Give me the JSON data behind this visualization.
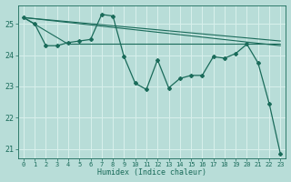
{
  "title": "",
  "xlabel": "Humidex (Indice chaleur)",
  "xlim": [
    -0.5,
    23.5
  ],
  "ylim": [
    20.7,
    25.6
  ],
  "yticks": [
    21,
    22,
    23,
    24,
    25
  ],
  "xticks": [
    0,
    1,
    2,
    3,
    4,
    5,
    6,
    7,
    8,
    9,
    10,
    11,
    12,
    13,
    14,
    15,
    16,
    17,
    18,
    19,
    20,
    21,
    22,
    23
  ],
  "background_color": "#b8ddd8",
  "grid_color": "#d8f0ec",
  "line_color": "#1a6b5a",
  "main_line": {
    "x": [
      0,
      1,
      2,
      3,
      4,
      5,
      6,
      7,
      8,
      9,
      10,
      11,
      12,
      13,
      14,
      15,
      16,
      17,
      18,
      19,
      20,
      21,
      22,
      23
    ],
    "y": [
      25.2,
      25.0,
      24.3,
      24.3,
      24.4,
      24.45,
      24.5,
      25.3,
      25.25,
      23.95,
      23.1,
      22.9,
      23.85,
      22.95,
      23.25,
      23.35,
      23.35,
      23.95,
      23.9,
      24.05,
      24.35,
      23.75,
      22.45,
      20.85
    ]
  },
  "trend_lines": [
    {
      "x": [
        0,
        23
      ],
      "y": [
        25.2,
        24.45
      ]
    },
    {
      "x": [
        0,
        23
      ],
      "y": [
        25.2,
        24.3
      ]
    },
    {
      "x": [
        0,
        4,
        23
      ],
      "y": [
        25.2,
        24.35,
        24.35
      ]
    }
  ]
}
